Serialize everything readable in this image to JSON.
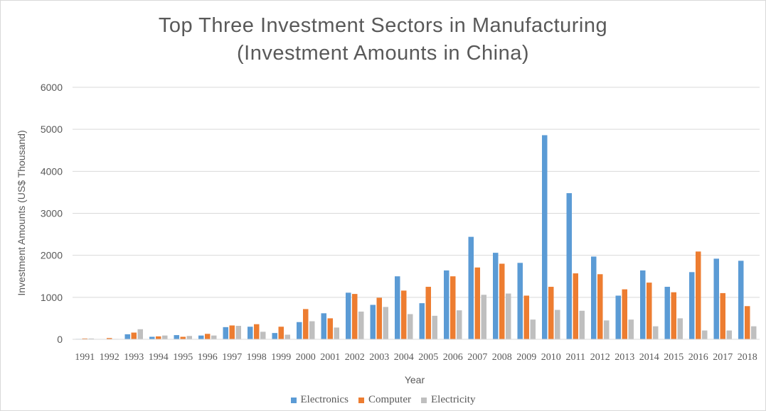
{
  "chart_data": {
    "type": "bar",
    "title_line1": "Top Three Investment Sectors in Manufacturing",
    "title_line2": "(Investment Amounts in China)",
    "xlabel": "Year",
    "ylabel": "Investment Amounts (US$ Thousand)",
    "ylim": [
      0,
      6000
    ],
    "yticks": [
      0,
      1000,
      2000,
      3000,
      4000,
      5000,
      6000
    ],
    "grid": true,
    "legend_position": "bottom",
    "categories": [
      "1991",
      "1992",
      "1993",
      "1994",
      "1995",
      "1996",
      "1997",
      "1998",
      "1999",
      "2000",
      "2001",
      "2002",
      "2003",
      "2004",
      "2005",
      "2006",
      "2007",
      "2008",
      "2009",
      "2010",
      "2011",
      "2012",
      "2013",
      "2014",
      "2015",
      "2016",
      "2017",
      "2018"
    ],
    "series": [
      {
        "name": "Electronics",
        "color": "#5b9bd5",
        "values": [
          10,
          5,
          120,
          60,
          100,
          90,
          290,
          300,
          150,
          410,
          620,
          1110,
          820,
          1500,
          860,
          1640,
          2440,
          2060,
          1820,
          4860,
          3480,
          1970,
          1040,
          1640,
          1250,
          1600,
          1920,
          1870
        ]
      },
      {
        "name": "Computer",
        "color": "#ed7d31",
        "values": [
          20,
          30,
          160,
          70,
          60,
          130,
          330,
          360,
          300,
          720,
          500,
          1080,
          990,
          1160,
          1250,
          1500,
          1710,
          1800,
          1040,
          1250,
          1570,
          1550,
          1190,
          1350,
          1120,
          2090,
          1100,
          790
        ]
      },
      {
        "name": "Electricity",
        "color": "#bfbfbf",
        "values": [
          20,
          10,
          240,
          90,
          80,
          90,
          320,
          180,
          110,
          430,
          280,
          660,
          770,
          600,
          560,
          690,
          1060,
          1090,
          470,
          700,
          680,
          450,
          470,
          310,
          500,
          210,
          210,
          310
        ]
      }
    ]
  }
}
